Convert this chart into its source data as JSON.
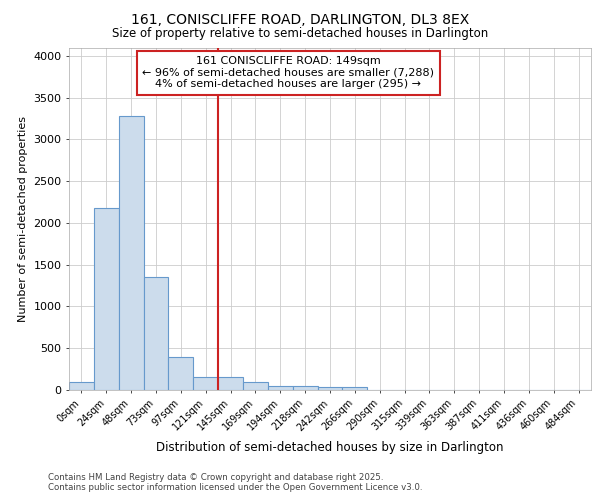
{
  "title_line1": "161, CONISCLIFFE ROAD, DARLINGTON, DL3 8EX",
  "title_line2": "Size of property relative to semi-detached houses in Darlington",
  "xlabel": "Distribution of semi-detached houses by size in Darlington",
  "ylabel": "Number of semi-detached properties",
  "footer_line1": "Contains HM Land Registry data © Crown copyright and database right 2025.",
  "footer_line2": "Contains public sector information licensed under the Open Government Licence v3.0.",
  "annotation_line1": "161 CONISCLIFFE ROAD: 149sqm",
  "annotation_line2": "← 96% of semi-detached houses are smaller (7,288)",
  "annotation_line3": "4% of semi-detached houses are larger (295) →",
  "bar_categories": [
    "0sqm",
    "24sqm",
    "48sqm",
    "73sqm",
    "97sqm",
    "121sqm",
    "145sqm",
    "169sqm",
    "194sqm",
    "218sqm",
    "242sqm",
    "266sqm",
    "290sqm",
    "315sqm",
    "339sqm",
    "363sqm",
    "387sqm",
    "411sqm",
    "436sqm",
    "460sqm",
    "484sqm"
  ],
  "bar_values": [
    100,
    2175,
    3280,
    1350,
    400,
    155,
    155,
    90,
    50,
    45,
    30,
    30,
    0,
    0,
    0,
    0,
    0,
    0,
    0,
    0,
    0
  ],
  "bar_color": "#ccdcec",
  "bar_edge_color": "#6699cc",
  "vline_color": "#cc2222",
  "vline_index": 6,
  "ylim": [
    0,
    4100
  ],
  "fig_bg": "#ffffff",
  "plot_bg": "#ffffff",
  "grid_color": "#cccccc",
  "yticks": [
    0,
    500,
    1000,
    1500,
    2000,
    2500,
    3000,
    3500,
    4000
  ]
}
